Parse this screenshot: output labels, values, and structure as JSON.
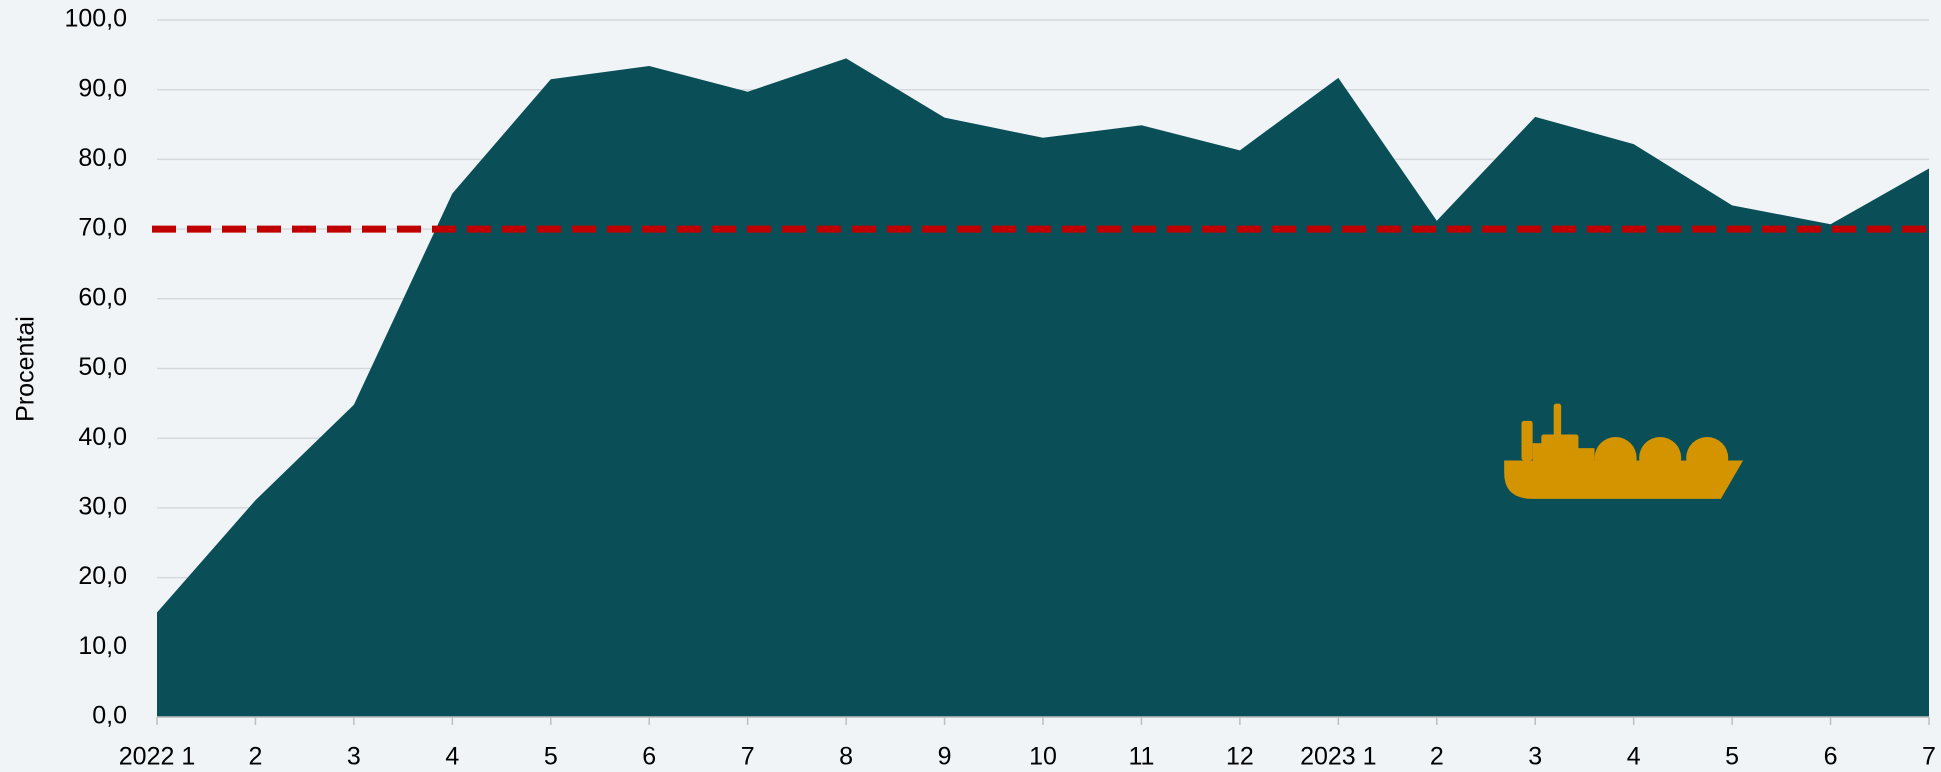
{
  "chart_data": {
    "type": "area",
    "y_label": "Procentai",
    "categories": [
      "2022 1",
      "2",
      "3",
      "4",
      "5",
      "6",
      "7",
      "8",
      "9",
      "10",
      "11",
      "12",
      "2023 1",
      "2",
      "3",
      "4",
      "5",
      "6",
      "7"
    ],
    "values": [
      15.0,
      31.1,
      44.8,
      75.1,
      91.5,
      93.4,
      89.7,
      94.5,
      86.0,
      83.1,
      84.9,
      81.3,
      91.7,
      71.2,
      86.1,
      82.2,
      73.4,
      70.7,
      78.7
    ],
    "color": "#0a4f58",
    "reference_line": {
      "value": 70,
      "color": "#c00000"
    },
    "ylim": [
      0,
      100
    ],
    "yticks": [
      {
        "value": 0,
        "label": "0,0"
      },
      {
        "value": 10,
        "label": "10,0"
      },
      {
        "value": 20,
        "label": "20,0"
      },
      {
        "value": 30,
        "label": "30,0"
      },
      {
        "value": 40,
        "label": "40,0"
      },
      {
        "value": 50,
        "label": "50,0"
      },
      {
        "value": 60,
        "label": "60,0"
      },
      {
        "value": 70,
        "label": "70,0"
      },
      {
        "value": 80,
        "label": "80,0"
      },
      {
        "value": 90,
        "label": "90,0"
      },
      {
        "value": 100,
        "label": "100,0"
      }
    ],
    "grid": true
  }
}
